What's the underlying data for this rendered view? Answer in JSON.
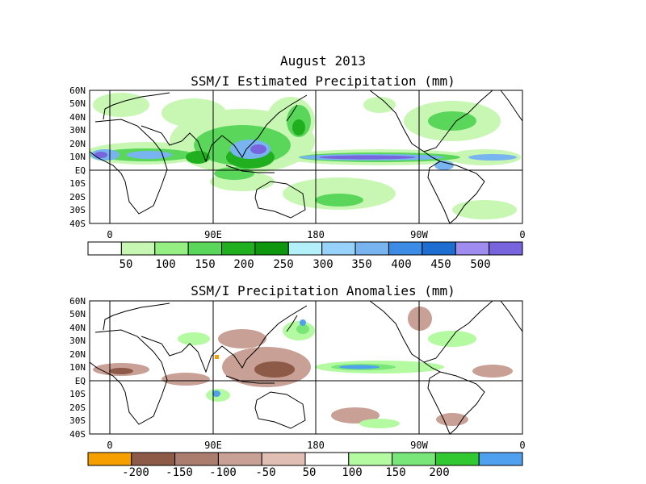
{
  "header": {
    "date": "August 2013"
  },
  "panels": [
    {
      "title": "SSM/I Estimated Precipitation (mm)",
      "lat_labels": [
        "60N",
        "50N",
        "40N",
        "30N",
        "20N",
        "10N",
        "EQ",
        "10S",
        "20S",
        "30S",
        "40S"
      ],
      "lon_labels": [
        "0",
        "90E",
        "180",
        "90W",
        "0"
      ],
      "colorbar": {
        "labels": [
          "50",
          "100",
          "150",
          "200",
          "250",
          "300",
          "350",
          "400",
          "450",
          "500"
        ],
        "colors": [
          "#ffffff",
          "#c8f7b4",
          "#96ef82",
          "#5ad75a",
          "#1faf1f",
          "#0e960e",
          "#b4f0fa",
          "#96d2fa",
          "#78b4f0",
          "#3c8ce6",
          "#1e6ed2",
          "#a08cf0",
          "#7864dc"
        ]
      }
    },
    {
      "title": "SSM/I Precipitation Anomalies (mm)",
      "lat_labels": [
        "60N",
        "50N",
        "40N",
        "30N",
        "20N",
        "10N",
        "EQ",
        "10S",
        "20S",
        "30S",
        "40S"
      ],
      "lon_labels": [
        "0",
        "90E",
        "180",
        "90W",
        "0"
      ],
      "colorbar": {
        "labels": [
          "-200",
          "-150",
          "-100",
          "-50",
          "50",
          "100",
          "150",
          "200"
        ],
        "colors": [
          "#f5a000",
          "#8c5a46",
          "#aa7d6e",
          "#c8a096",
          "#e1beb4",
          "#ffffff",
          "#b4faa0",
          "#78e678",
          "#32c832",
          "#50a0f0"
        ]
      }
    }
  ]
}
